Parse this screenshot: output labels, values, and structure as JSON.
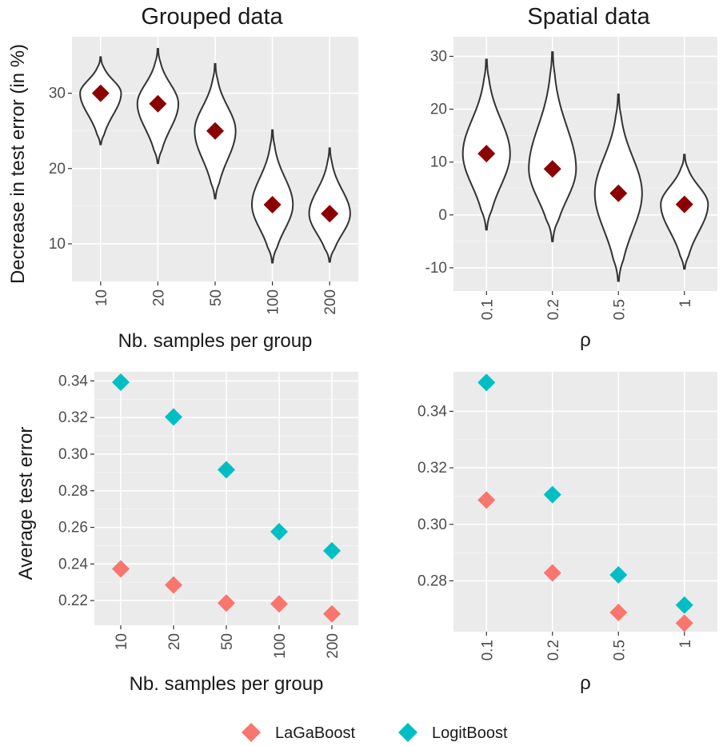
{
  "legend": {
    "items": [
      {
        "name": "LaGaBoost",
        "color": "#F8766D"
      },
      {
        "name": "LogitBoost",
        "color": "#00BFC4"
      }
    ]
  },
  "chart_data": [
    {
      "id": "grouped-violin",
      "type": "violin",
      "title": "Grouped data",
      "xlabel": "Nb. samples per group",
      "ylabel": "Decrease in test error (in %)",
      "categories": [
        "10",
        "20",
        "50",
        "100",
        "200"
      ],
      "mean": [
        30.0,
        28.6,
        25.0,
        15.2,
        14.0
      ],
      "range_min": [
        23.2,
        20.7,
        16.0,
        7.5,
        7.6
      ],
      "range_max": [
        34.8,
        35.9,
        33.9,
        25.1,
        22.7
      ],
      "mean_color": "#8B0000",
      "yticks": [
        10,
        20,
        30
      ],
      "ylim": [
        5.0,
        37.5
      ]
    },
    {
      "id": "spatial-violin",
      "type": "violin",
      "title": "Spatial data",
      "xlabel": "ρ",
      "ylabel": "",
      "categories": [
        "0.1",
        "0.2",
        "0.5",
        "1"
      ],
      "mean": [
        11.6,
        8.7,
        4.1,
        2.0
      ],
      "range_min": [
        -2.8,
        -5.0,
        -12.5,
        -10.2
      ],
      "range_max": [
        29.4,
        30.8,
        22.8,
        11.4
      ],
      "mean_color": "#8B0000",
      "yticks": [
        -10,
        0,
        10,
        20,
        30
      ],
      "ylim": [
        -14.4,
        33.7
      ]
    },
    {
      "id": "grouped-scatter",
      "type": "scatter",
      "title": "",
      "xlabel": "Nb. samples per group",
      "ylabel": "Average test error",
      "categories": [
        "10",
        "20",
        "50",
        "100",
        "200"
      ],
      "series": [
        {
          "name": "LaGaBoost",
          "values": [
            0.2373,
            0.2285,
            0.2186,
            0.2182,
            0.2127
          ]
        },
        {
          "name": "LogitBoost",
          "values": [
            0.3393,
            0.3203,
            0.2915,
            0.2576,
            0.2472
          ]
        }
      ],
      "yticks": [
        0.22,
        0.24,
        0.26,
        0.28,
        0.3,
        0.32,
        0.34
      ],
      "ylim": [
        0.2065,
        0.345
      ]
    },
    {
      "id": "spatial-scatter",
      "type": "scatter",
      "title": "",
      "xlabel": "ρ",
      "ylabel": "",
      "categories": [
        "0.1",
        "0.2",
        "0.5",
        "1"
      ],
      "series": [
        {
          "name": "LaGaBoost",
          "values": [
            0.3086,
            0.2828,
            0.2688,
            0.265
          ]
        },
        {
          "name": "LogitBoost",
          "values": [
            0.3502,
            0.3105,
            0.2821,
            0.2714
          ]
        }
      ],
      "yticks": [
        0.28,
        0.3,
        0.32,
        0.34
      ],
      "ylim": [
        0.262,
        0.354
      ]
    }
  ]
}
